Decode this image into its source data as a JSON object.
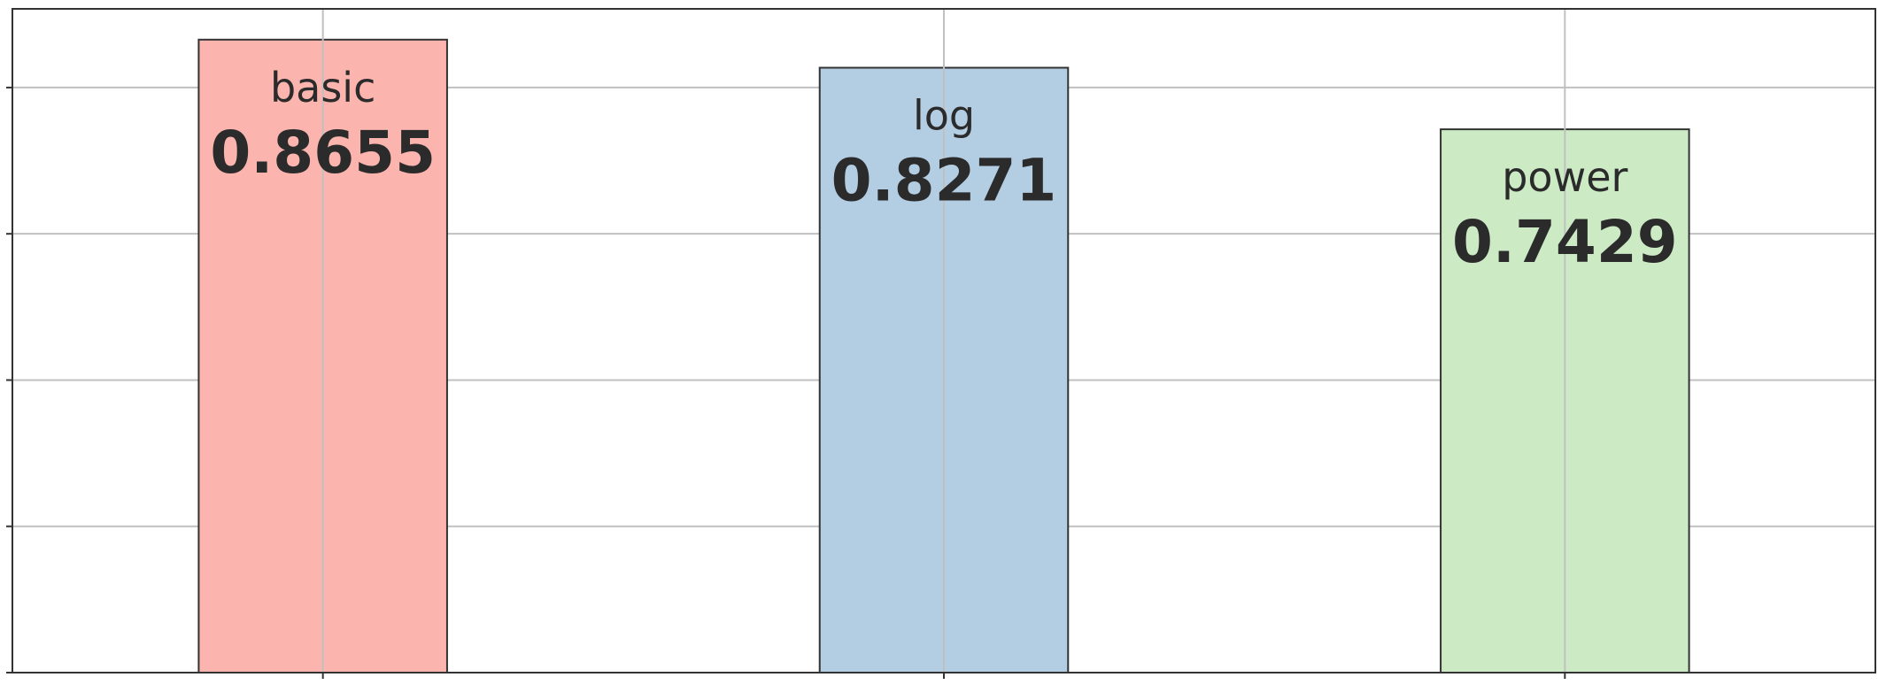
{
  "chart_data": {
    "type": "bar",
    "categories": [
      "basic",
      "log",
      "power"
    ],
    "values": [
      0.8655,
      0.8271,
      0.7429
    ],
    "value_labels": [
      "0.8655",
      "0.8271",
      "0.7429"
    ],
    "colors": [
      "#fbb4ae",
      "#b3cde3",
      "#ccebc5"
    ],
    "edge_color": "#333333",
    "grid": true,
    "grid_color": "#c0c0c0",
    "ylim": [
      0,
      0.9076
    ],
    "yticks": [
      0,
      0.2,
      0.4,
      0.6,
      0.8
    ],
    "title": "",
    "xlabel": "",
    "ylabel": ""
  }
}
